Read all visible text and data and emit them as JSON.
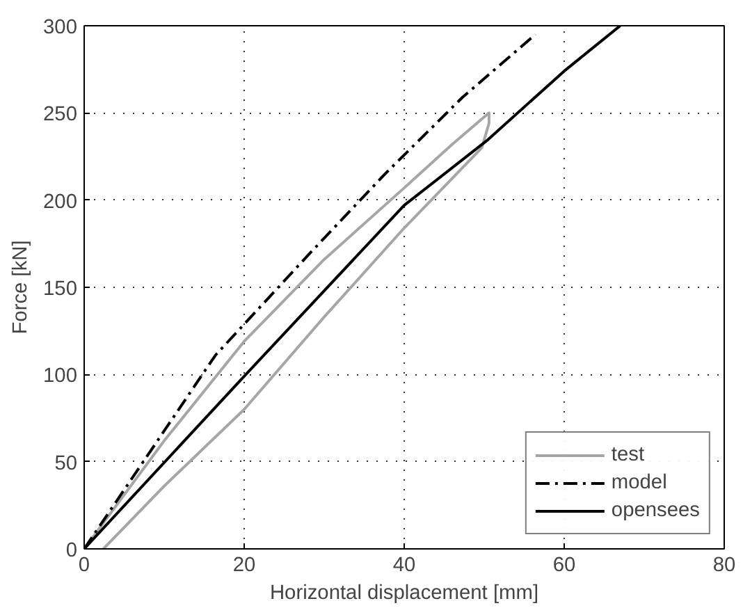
{
  "chart_data": {
    "type": "line",
    "xlabel": "Horizontal displacement [mm]",
    "ylabel": "Force [kN]",
    "xlim": [
      0,
      80
    ],
    "ylim": [
      0,
      300
    ],
    "xticks": [
      0,
      20,
      40,
      60,
      80
    ],
    "yticks": [
      0,
      50,
      100,
      150,
      200,
      250,
      300
    ],
    "grid": true,
    "legend": "bottom right",
    "series": [
      {
        "name": "test",
        "color": "#a6a6a6",
        "line_style": "solid",
        "x": [
          0,
          10,
          20,
          30,
          40,
          46,
          50.6,
          50.6,
          49.7,
          40,
          30,
          20,
          10,
          2.4
        ],
        "values": [
          0,
          62,
          119,
          166,
          207,
          232,
          250,
          244,
          230,
          184,
          133,
          80,
          36,
          0
        ]
      },
      {
        "name": "model",
        "color": "#000000",
        "line_style": "dashdot",
        "x": [
          0,
          16.4,
          27.9,
          37.6,
          47.3,
          56.4
        ],
        "values": [
          0,
          111,
          168,
          215,
          259,
          295
        ]
      },
      {
        "name": "opensees",
        "color": "#000000",
        "line_style": "solid",
        "x": [
          0,
          20,
          40,
          50.3,
          60,
          67
        ],
        "values": [
          0,
          99,
          197,
          234,
          274,
          300
        ]
      }
    ]
  }
}
